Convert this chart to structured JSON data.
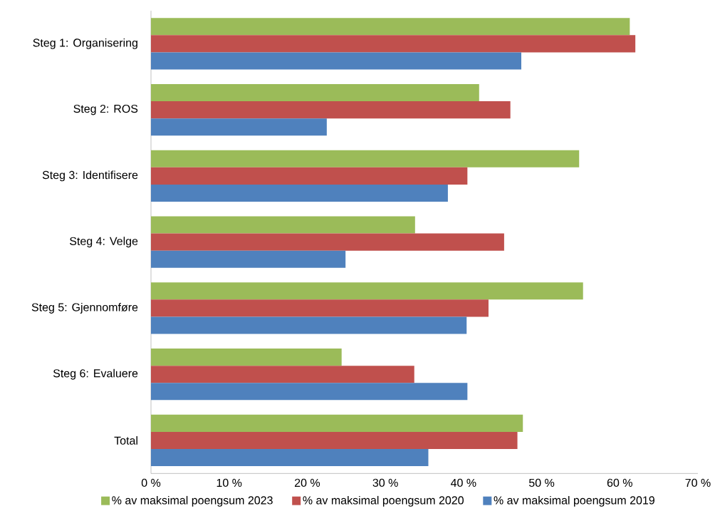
{
  "chart_data": {
    "type": "bar",
    "orientation": "horizontal",
    "categories": [
      "Steg 1: Organisering",
      "Steg 2: ROS",
      "Steg 3: Identifisere",
      "Steg 4: Velge",
      "Steg 5: Gjennomføre",
      "Steg 6: Evaluere",
      "Total"
    ],
    "series": [
      {
        "name": "% av maksimal poengsum 2023",
        "color": "#9bbb59",
        "values": [
          61.3,
          42.0,
          54.8,
          33.8,
          55.3,
          24.4,
          47.6
        ]
      },
      {
        "name": "% av maksimal poengsum 2020",
        "color": "#c0504d",
        "values": [
          62.0,
          46.0,
          40.5,
          45.2,
          43.2,
          33.7,
          46.9
        ]
      },
      {
        "name": "% av maksimal poengsum 2019",
        "color": "#4f81bd",
        "values": [
          47.4,
          22.5,
          38.0,
          24.9,
          40.4,
          40.5,
          35.5
        ]
      }
    ],
    "xlim": [
      0,
      70
    ],
    "xticks": [
      {
        "value": 0,
        "label": "0 %"
      },
      {
        "value": 10,
        "label": "10 %"
      },
      {
        "value": 20,
        "label": "20 %"
      },
      {
        "value": 30,
        "label": "30 %"
      },
      {
        "value": 40,
        "label": "40 %"
      },
      {
        "value": 50,
        "label": "50 %"
      },
      {
        "value": 60,
        "label": "60 %"
      },
      {
        "value": 70,
        "label": "70 %"
      }
    ],
    "grid": false,
    "legend": "bottom"
  }
}
